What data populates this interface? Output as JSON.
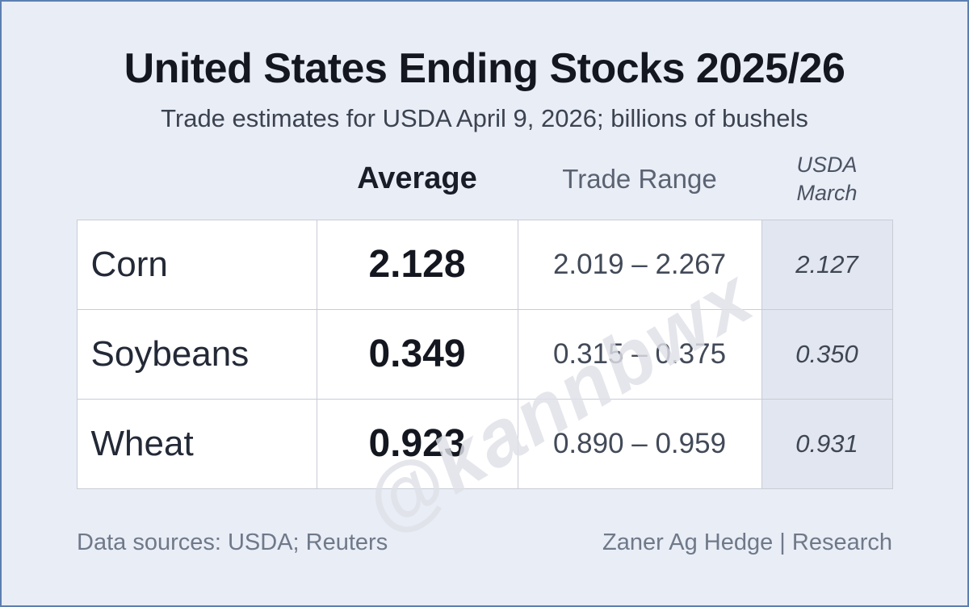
{
  "header": {
    "title": "United States Ending Stocks 2025/26",
    "subtitle": "Trade estimates for USDA April 9, 2026; billions of bushels"
  },
  "watermark": {
    "text": "@kannbwx"
  },
  "footer": {
    "left": "Data sources: USDA; Reuters",
    "right": "Zaner Ag Hedge | Research"
  },
  "columns": {
    "commodity": "",
    "average": "Average",
    "trade_range": "Trade Range",
    "usda_march": "USDA March"
  },
  "chart_data": {
    "type": "table",
    "title": "United States Ending Stocks 2025/26",
    "subtitle": "Trade estimates for USDA April 9, 2026; billions of bushels",
    "units": "billions of bushels",
    "columns": [
      "Average",
      "Trade Range",
      "USDA March"
    ],
    "rows": [
      {
        "commodity": "Corn",
        "average": "2.128",
        "trade_range": "2.019 – 2.267",
        "usda_march": "2.127"
      },
      {
        "commodity": "Soybeans",
        "average": "0.349",
        "trade_range": "0.315 – 0.375",
        "usda_march": "0.350"
      },
      {
        "commodity": "Wheat",
        "average": "0.923",
        "trade_range": "0.890 – 0.959",
        "usda_march": "0.931"
      }
    ],
    "numeric": {
      "commodities": [
        "Corn",
        "Soybeans",
        "Wheat"
      ],
      "average": [
        2.128,
        0.349,
        0.923
      ],
      "trade_range_low": [
        2.019,
        0.315,
        0.89
      ],
      "trade_range_high": [
        2.267,
        0.375,
        0.959
      ],
      "usda_march": [
        2.127,
        0.35,
        0.931
      ]
    }
  },
  "colors": {
    "page_background": "#e9edf6",
    "frame_border": "#5b7fb0",
    "cell_background": "#ffffff",
    "shaded_column_background": "#e2e6f0",
    "grid_line": "#c8ccd5",
    "title_text": "#14171f",
    "muted_text": "#6f7989"
  }
}
